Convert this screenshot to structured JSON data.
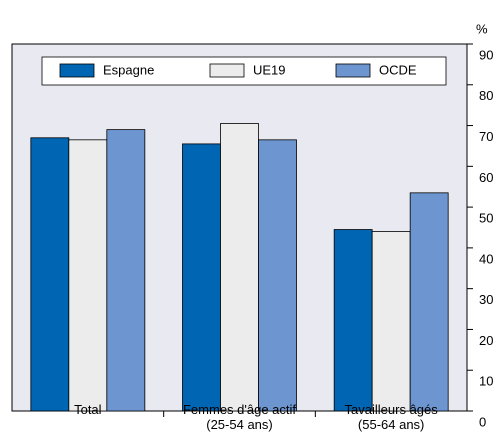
{
  "chart_data": {
    "type": "bar",
    "y_axis_label": "%",
    "categories": [
      "Total",
      "Femmes d'âge actif\n(25-54 ans)",
      "Tavailleurs âgés\n(55-64 ans)"
    ],
    "series": [
      {
        "name": "Espagne",
        "color": "#0066b3",
        "values": [
          67,
          65.5,
          44.5
        ]
      },
      {
        "name": "UE19",
        "color": "#ececec",
        "values": [
          66.5,
          70.5,
          44
        ]
      },
      {
        "name": "OCDE",
        "color": "#6d96d0",
        "values": [
          69,
          66.5,
          53.5
        ]
      }
    ],
    "ylim": [
      0,
      90
    ],
    "yticks": [
      0,
      10,
      20,
      30,
      40,
      50,
      60,
      70,
      80,
      90
    ],
    "y_axis_side": "right"
  }
}
